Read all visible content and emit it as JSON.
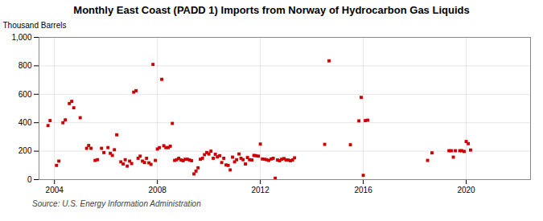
{
  "chart_data": {
    "type": "scatter",
    "title": "Monthly East Coast (PADD 1) Imports from Norway of Hydrocarbon Gas Liquids",
    "ylabel": "Thousand Barrels",
    "source": "Source: U.S. Energy Information Administration",
    "color": "#cc0000",
    "marker": "square",
    "grid": true,
    "xlim": [
      2003.4,
      2022.5
    ],
    "xticks": [
      2004,
      2008,
      2012,
      2016,
      2020
    ],
    "ylim": [
      0,
      1000
    ],
    "yticks": [
      0,
      200,
      400,
      600,
      800,
      {
        "value": 1000,
        "label": "1,000"
      }
    ],
    "x": [
      2003.75,
      2003.83,
      2004.08,
      2004.17,
      2004.33,
      2004.42,
      2004.58,
      2004.67,
      2004.75,
      2005.0,
      2005.25,
      2005.33,
      2005.42,
      2005.58,
      2005.67,
      2005.83,
      2005.92,
      2006.08,
      2006.17,
      2006.25,
      2006.33,
      2006.42,
      2006.58,
      2006.67,
      2006.75,
      2006.83,
      2006.92,
      2007.0,
      2007.08,
      2007.17,
      2007.25,
      2007.33,
      2007.42,
      2007.5,
      2007.58,
      2007.67,
      2007.75,
      2007.83,
      2007.92,
      2008.0,
      2008.08,
      2008.17,
      2008.25,
      2008.33,
      2008.42,
      2008.5,
      2008.58,
      2008.67,
      2008.75,
      2008.83,
      2008.92,
      2009.0,
      2009.08,
      2009.17,
      2009.25,
      2009.33,
      2009.42,
      2009.5,
      2009.58,
      2009.67,
      2009.75,
      2009.83,
      2009.92,
      2010.0,
      2010.08,
      2010.17,
      2010.25,
      2010.33,
      2010.42,
      2010.5,
      2010.58,
      2010.67,
      2010.75,
      2010.83,
      2010.92,
      2011.0,
      2011.08,
      2011.17,
      2011.25,
      2011.33,
      2011.42,
      2011.5,
      2011.58,
      2011.67,
      2011.75,
      2011.83,
      2011.92,
      2012.0,
      2012.08,
      2012.17,
      2012.25,
      2012.33,
      2012.42,
      2012.5,
      2012.58,
      2012.67,
      2012.75,
      2012.83,
      2012.92,
      2013.0,
      2013.08,
      2013.17,
      2013.25,
      2013.33,
      2014.5,
      2014.67,
      2015.5,
      2015.83,
      2015.92,
      2016.0,
      2016.08,
      2016.17,
      2018.5,
      2018.67,
      2019.33,
      2019.42,
      2019.5,
      2019.58,
      2019.75,
      2019.83,
      2019.92,
      2020.0,
      2020.08,
      2020.17
    ],
    "values": [
      380,
      415,
      100,
      130,
      400,
      420,
      535,
      550,
      505,
      435,
      220,
      240,
      220,
      135,
      140,
      220,
      190,
      225,
      185,
      170,
      210,
      315,
      125,
      110,
      140,
      95,
      130,
      113,
      615,
      625,
      150,
      165,
      130,
      120,
      150,
      118,
      107,
      810,
      135,
      215,
      225,
      705,
      238,
      225,
      225,
      235,
      395,
      135,
      140,
      150,
      138,
      133,
      143,
      143,
      138,
      133,
      40,
      60,
      83,
      143,
      150,
      175,
      190,
      180,
      200,
      150,
      178,
      160,
      168,
      120,
      150,
      103,
      100,
      68,
      158,
      125,
      140,
      180,
      150,
      140,
      110,
      155,
      140,
      138,
      170,
      168,
      165,
      250,
      145,
      143,
      140,
      135,
      145,
      150,
      10,
      138,
      133,
      143,
      148,
      138,
      138,
      133,
      138,
      153,
      248,
      835,
      245,
      413,
      578,
      30,
      415,
      418,
      135,
      188,
      203,
      203,
      158,
      203,
      203,
      203,
      198,
      268,
      253,
      208
    ]
  }
}
